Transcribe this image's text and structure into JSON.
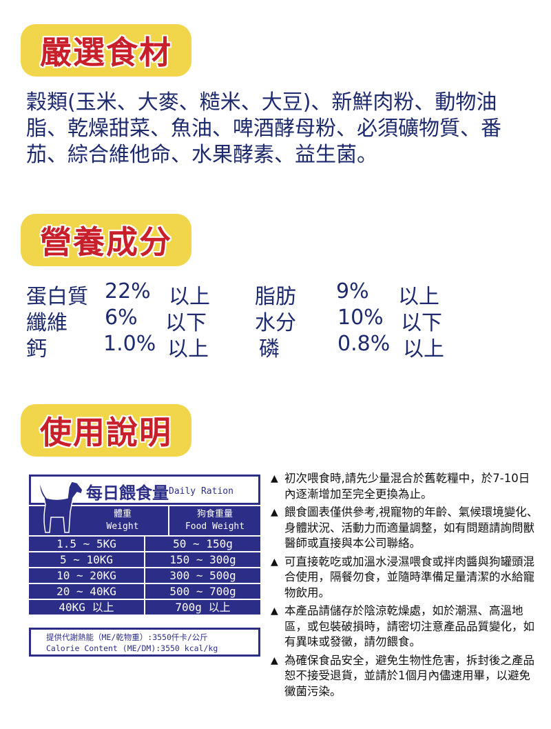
{
  "sections": {
    "ingredients": {
      "title": "嚴選食材",
      "text": "穀類(玉米、大麥、糙米、大豆)、新鮮肉粉、動物油脂、乾燥甜菜、魚油、啤酒酵母粉、必須礦物質、番茄、綜合維他命、水果酵素、益生菌。"
    },
    "nutrition": {
      "title": "營養成分",
      "items": [
        {
          "name": "蛋白質",
          "value": "22%",
          "qualifier": "以上"
        },
        {
          "name": "脂肪",
          "value": "9%",
          "qualifier": "以上"
        },
        {
          "name": "纖維",
          "value": "6%",
          "qualifier": "以下"
        },
        {
          "name": "水分",
          "value": "10%",
          "qualifier": "以下"
        },
        {
          "name": "鈣",
          "value": "1.0%",
          "qualifier": "以上"
        },
        {
          "name": "磷",
          "value": "0.8%",
          "qualifier": "以上"
        }
      ]
    },
    "usage": {
      "title": "使用說明"
    }
  },
  "ration_table": {
    "title": "每日餵食量",
    "title_en": "Daily Ration",
    "headers": [
      {
        "zh": "體重",
        "en": "Weight"
      },
      {
        "zh": "狗食重量",
        "en": "Food Weight"
      }
    ],
    "rows": [
      [
        "1.5 ~ 5KG",
        "50 ~ 150g"
      ],
      [
        "5 ~ 10KG",
        "150 ~ 300g"
      ],
      [
        "10 ~ 20KG",
        "300 ~ 500g"
      ],
      [
        "20 ~ 40KG",
        "500 ~ 700g"
      ],
      [
        "40KG  以上",
        "700g 以上"
      ]
    ],
    "calorie_zh": "提供代謝熱能（ME/乾物重）:3550仟卡/公斤",
    "calorie_en": "Calorie Content (ME/DM):3550 kcal/kg",
    "color": "#2b2d87"
  },
  "notes": [
    "初次喂食時,請先少量混合於舊乾糧中，於7-10日內逐漸增加至完全更換為止。",
    "餵食圖表僅供參考,視寵物的年齡、氣候環境變化、 身體狀況、活動力而適量調整，如有問題請詢問獸醫師或直接與本公司聯絡。",
    "可直接乾吃或加溫水浸濕喂食或拌肉醬與狗罐頭混合使用，隔餐勿食，並隨時準備足量清潔的水給寵物飲用。",
    "本產品請儲存於陰涼乾燥處，如於潮濕、高溫地區，或包裝破損時，請密切注意產品品質變化，如有異味或發黴，請勿餵食。",
    "為確保食品安全，避免生物性危害，拆封後之產品恕不接受退貨，並請於1個月內儘速用畢，以避免黴菌污染。"
  ],
  "colors": {
    "badge": "#f1d64c",
    "badge_text": "#c91f2b",
    "body_text": "#1d2a6e"
  }
}
